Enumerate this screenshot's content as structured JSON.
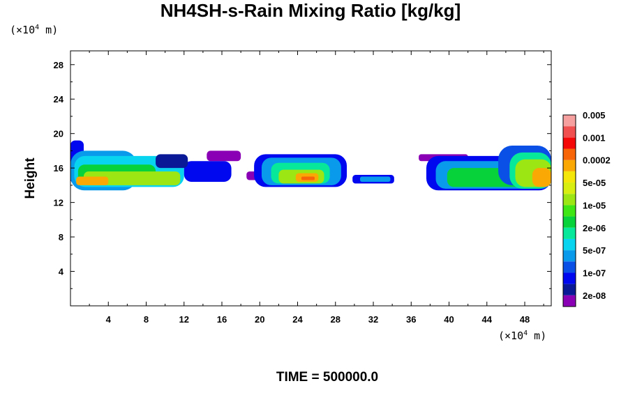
{
  "chart_data": {
    "type": "heatmap",
    "title": "NH4SH-s-Rain Mixing Ratio [kg/kg]",
    "xlabel": "",
    "ylabel": "Height",
    "x_unit_prefix": "(×10",
    "x_unit_exp": "4",
    "x_unit_suffix": " m)",
    "y_unit_prefix": "(×10",
    "y_unit_exp": "4",
    "y_unit_suffix": " m)",
    "xlim": [
      0,
      50.8
    ],
    "ylim": [
      0,
      29.6
    ],
    "x_ticks": [
      4,
      8,
      12,
      16,
      20,
      24,
      28,
      32,
      36,
      40,
      44,
      48
    ],
    "y_ticks": [
      4,
      8,
      12,
      16,
      20,
      24,
      28
    ],
    "footer": "TIME = 500000.0",
    "colorbar": {
      "colors": [
        "#8a00b4",
        "#0a1a96",
        "#0008f0",
        "#0a50e6",
        "#0a9aeb",
        "#08d4f0",
        "#08e89a",
        "#08d23a",
        "#40e614",
        "#9ce614",
        "#d7ee10",
        "#f5e60a",
        "#f9a804",
        "#f86408",
        "#f40808",
        "#f05050",
        "#f6a0a0"
      ],
      "labels": [
        "2e-08",
        "1e-07",
        "5e-07",
        "2e-06",
        "1e-05",
        "5e-05",
        "0.0002",
        "0.001",
        "0.005"
      ]
    },
    "cells": [
      {
        "xr": [
          0,
          1.4
        ],
        "yr": [
          14.2,
          19.2
        ],
        "lvl": 2
      },
      {
        "xr": [
          0,
          7.0
        ],
        "yr": [
          13.4,
          18.0
        ],
        "lvl": 4
      },
      {
        "xr": [
          0.4,
          12.0
        ],
        "yr": [
          13.8,
          17.4
        ],
        "lvl": 5
      },
      {
        "xr": [
          0.8,
          9.0
        ],
        "yr": [
          14.2,
          16.4
        ],
        "lvl": 7
      },
      {
        "xr": [
          1.4,
          11.6
        ],
        "yr": [
          14.0,
          15.6
        ],
        "lvl": 9
      },
      {
        "xr": [
          0.6,
          4.0
        ],
        "yr": [
          14.0,
          15.0
        ],
        "lvl": 12
      },
      {
        "xr": [
          12.0,
          17.0
        ],
        "yr": [
          14.4,
          16.8
        ],
        "lvl": 2
      },
      {
        "xr": [
          9.0,
          12.4
        ],
        "yr": [
          16.0,
          17.6
        ],
        "lvl": 1
      },
      {
        "xr": [
          14.4,
          18.0
        ],
        "yr": [
          16.8,
          18.0
        ],
        "lvl": 0
      },
      {
        "xr": [
          18.6,
          20.4
        ],
        "yr": [
          14.6,
          15.6
        ],
        "lvl": 0
      },
      {
        "xr": [
          19.4,
          29.2
        ],
        "yr": [
          13.8,
          17.6
        ],
        "lvl": 2
      },
      {
        "xr": [
          20.2,
          28.6
        ],
        "yr": [
          14.0,
          17.2
        ],
        "lvl": 4
      },
      {
        "xr": [
          21.2,
          27.4
        ],
        "yr": [
          14.2,
          16.6
        ],
        "lvl": 6
      },
      {
        "xr": [
          22.0,
          26.8
        ],
        "yr": [
          14.2,
          15.8
        ],
        "lvl": 9
      },
      {
        "xr": [
          23.8,
          26.2
        ],
        "yr": [
          14.4,
          15.4
        ],
        "lvl": 12
      },
      {
        "xr": [
          24.4,
          25.8
        ],
        "yr": [
          14.6,
          15.0
        ],
        "lvl": 13
      },
      {
        "xr": [
          29.8,
          34.2
        ],
        "yr": [
          14.2,
          15.2
        ],
        "lvl": 2
      },
      {
        "xr": [
          30.6,
          33.8
        ],
        "yr": [
          14.4,
          15.0
        ],
        "lvl": 4
      },
      {
        "xr": [
          36.8,
          42.0
        ],
        "yr": [
          16.8,
          17.6
        ],
        "lvl": 0
      },
      {
        "xr": [
          37.6,
          50.8
        ],
        "yr": [
          13.4,
          17.4
        ],
        "lvl": 2
      },
      {
        "xr": [
          38.6,
          50.8
        ],
        "yr": [
          13.6,
          16.8
        ],
        "lvl": 4
      },
      {
        "xr": [
          39.8,
          50.8
        ],
        "yr": [
          13.8,
          16.0
        ],
        "lvl": 7
      },
      {
        "xr": [
          45.2,
          50.8
        ],
        "yr": [
          14.0,
          18.6
        ],
        "lvl": 3
      },
      {
        "xr": [
          46.4,
          50.8
        ],
        "yr": [
          13.6,
          17.8
        ],
        "lvl": 6
      },
      {
        "xr": [
          47.0,
          50.8
        ],
        "yr": [
          13.8,
          17.0
        ],
        "lvl": 9
      },
      {
        "xr": [
          48.8,
          50.8
        ],
        "yr": [
          13.8,
          16.0
        ],
        "lvl": 12
      }
    ]
  }
}
